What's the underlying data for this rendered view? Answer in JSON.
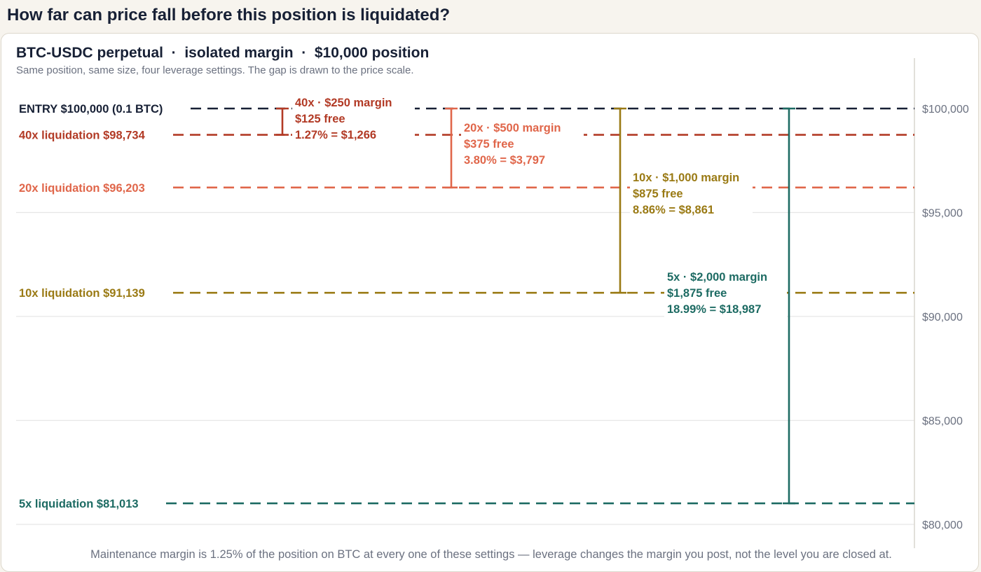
{
  "page": {
    "title": "How far can price fall before this position is liquidated?"
  },
  "chart_data": {
    "type": "line",
    "title": "BTC-USDC perpetual  ·  isolated margin  ·  $10,000 position",
    "subtitle": "Same position, same size, four leverage settings. The gap is drawn to the price scale.",
    "footnote": "Maintenance margin is 1.25% of the position on BTC at every one of these settings — leverage changes the margin you post, not the level you are closed at.",
    "ylim": [
      77600,
      102400
    ],
    "yticks": [
      {
        "value": 100000,
        "label": "$100,000"
      },
      {
        "value": 95000,
        "label": "$95,000"
      },
      {
        "value": 90000,
        "label": "$90,000"
      },
      {
        "value": 85000,
        "label": "$85,000"
      },
      {
        "value": 80000,
        "label": "$80,000"
      }
    ],
    "grid": true,
    "entry": {
      "price": 100000,
      "label": "ENTRY  $100,000  (0.1 BTC)",
      "color": "#172035"
    },
    "series": [
      {
        "name": "40x",
        "liquidation_price": 98734,
        "line_label": "40x  liquidation  $98,734",
        "color": "#b23a25",
        "annotation": [
          "40x · $250 margin",
          "$125 free",
          "1.27% = $1,266"
        ]
      },
      {
        "name": "20x",
        "liquidation_price": 96203,
        "line_label": "20x  liquidation  $96,203",
        "color": "#e0664a",
        "annotation": [
          "20x · $500 margin",
          "$375 free",
          "3.80% = $3,797"
        ]
      },
      {
        "name": "10x",
        "liquidation_price": 91139,
        "line_label": "10x  liquidation  $91,139",
        "color": "#9a7a14",
        "annotation": [
          "10x · $1,000 margin",
          "$875 free",
          "8.86% = $8,861"
        ]
      },
      {
        "name": "5x",
        "liquidation_price": 81013,
        "line_label": "5x  liquidation  $81,013",
        "color": "#1d6b63",
        "annotation": [
          "5x · $2,000 margin",
          "$1,875 free",
          "18.99% = $18,987"
        ]
      }
    ]
  }
}
